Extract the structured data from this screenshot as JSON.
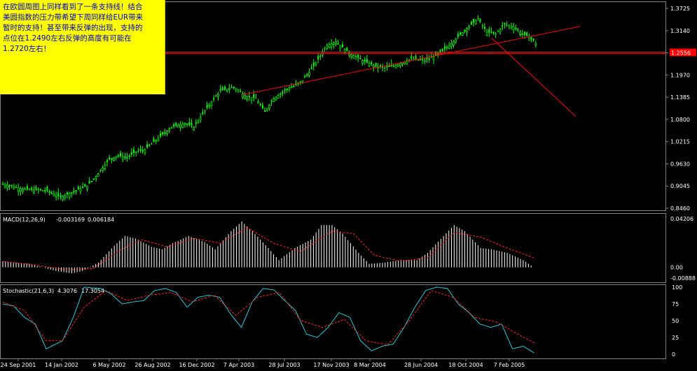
{
  "note": {
    "lines": [
      "在欧圆周图上同样看到了一条支持线！结合",
      "美圆指数的压力带希望下周同样给EUR带来",
      "暂时的支持！甚至带来反弹的出现，支持的",
      "点位在1.2490左右反弹的高度有可能在",
      "1.2720左右！"
    ]
  },
  "colors": {
    "background": "#000000",
    "candle_up": "#00ff00",
    "candle_down": "#00ff00",
    "grid_border": "#808080",
    "trend_line": "#ff0000",
    "macd_hist": "#ffffff",
    "macd_signal": "#ff2020",
    "stoch_main": "#20c8d8",
    "stoch_signal": "#ff2020",
    "price_label_bg": "#ff0000",
    "note_bg": "#ffff00",
    "note_text": "#0000c8"
  },
  "chart_data": [
    {
      "type": "candlestick",
      "title": "",
      "price_axis_ticks": [
        "1.3725",
        "1.3140",
        "1.2555",
        "1.1970",
        "1.1385",
        "1.0800",
        "1.0215",
        "0.9630",
        "0.9045",
        "0.8460"
      ],
      "ylim": [
        0.846,
        1.3725
      ],
      "current_price_label": "1.2556",
      "date_ticks": [
        "24 Sep 2001",
        "14 Jan 2002",
        "6 May 2002",
        "26 Aug 2002",
        "16 Dec 2002",
        "7 Apr 2003",
        "28 Jul 2003",
        "17 Nov 2003",
        "8 Mar 2004",
        "28 Jun 2004",
        "18 Oct 2004",
        "7 Feb 2005"
      ],
      "close_path": [
        [
          0,
          0.91
        ],
        [
          10,
          0.895
        ],
        [
          20,
          0.893
        ],
        [
          26,
          0.875
        ],
        [
          30,
          0.885
        ],
        [
          38,
          0.905
        ],
        [
          42,
          0.93
        ],
        [
          48,
          0.975
        ],
        [
          52,
          0.985
        ],
        [
          56,
          0.98
        ],
        [
          60,
          0.995
        ],
        [
          64,
          1.0
        ],
        [
          70,
          1.03
        ],
        [
          76,
          1.06
        ],
        [
          82,
          1.07
        ],
        [
          86,
          1.06
        ],
        [
          92,
          1.11
        ],
        [
          98,
          1.155
        ],
        [
          104,
          1.165
        ],
        [
          110,
          1.14
        ],
        [
          114,
          1.135
        ],
        [
          118,
          1.1
        ],
        [
          122,
          1.135
        ],
        [
          128,
          1.16
        ],
        [
          134,
          1.175
        ],
        [
          140,
          1.22
        ],
        [
          146,
          1.275
        ],
        [
          150,
          1.285
        ],
        [
          156,
          1.255
        ],
        [
          162,
          1.235
        ],
        [
          168,
          1.22
        ],
        [
          172,
          1.215
        ],
        [
          178,
          1.225
        ],
        [
          184,
          1.24
        ],
        [
          190,
          1.235
        ],
        [
          196,
          1.25
        ],
        [
          202,
          1.28
        ],
        [
          208,
          1.315
        ],
        [
          212,
          1.335
        ],
        [
          214,
          1.345
        ],
        [
          218,
          1.31
        ],
        [
          222,
          1.305
        ],
        [
          226,
          1.33
        ],
        [
          230,
          1.325
        ],
        [
          234,
          1.305
        ],
        [
          238,
          1.295
        ],
        [
          240,
          1.28
        ]
      ],
      "trend_lines": [
        {
          "from": [
            108,
            1.145
          ],
          "to": [
            260,
            1.325
          ]
        },
        {
          "from": [
            220,
            1.295
          ],
          "to": [
            258,
            1.088
          ]
        }
      ],
      "horizontal_lines": [
        1.2575,
        1.2535
      ]
    },
    {
      "type": "line",
      "title": "MACD(12,26,9)",
      "values_label": [
        "-0.003169",
        "0.006184"
      ],
      "ticks": [
        "0.04206",
        "0.00",
        "-0.00888"
      ],
      "ylim": [
        -0.00888,
        0.04206
      ],
      "series": [
        {
          "kind": "histogram",
          "path": [
            [
              0,
              0.005
            ],
            [
              10,
              0.003
            ],
            [
              20,
              -0.003
            ],
            [
              26,
              -0.005
            ],
            [
              30,
              -0.003
            ],
            [
              36,
              0.004
            ],
            [
              42,
              0.018
            ],
            [
              46,
              0.026
            ],
            [
              50,
              0.024
            ],
            [
              56,
              0.017
            ],
            [
              60,
              0.015
            ],
            [
              64,
              0.02
            ],
            [
              70,
              0.026
            ],
            [
              76,
              0.021
            ],
            [
              80,
              0.015
            ],
            [
              86,
              0.03
            ],
            [
              90,
              0.038
            ],
            [
              94,
              0.03
            ],
            [
              100,
              0.016
            ],
            [
              104,
              0.006
            ],
            [
              110,
              0.016
            ],
            [
              116,
              0.023
            ],
            [
              120,
              0.035
            ],
            [
              124,
              0.035
            ],
            [
              128,
              0.028
            ],
            [
              134,
              0.012
            ],
            [
              138,
              0.003
            ],
            [
              144,
              0.004
            ],
            [
              150,
              0.006
            ],
            [
              156,
              0.006
            ],
            [
              160,
              0.012
            ],
            [
              166,
              0.026
            ],
            [
              170,
              0.035
            ],
            [
              174,
              0.03
            ],
            [
              180,
              0.016
            ],
            [
              184,
              0.015
            ],
            [
              190,
              0.012
            ],
            [
              196,
              0.006
            ],
            [
              200,
              0.0
            ]
          ]
        },
        {
          "kind": "signal",
          "path": [
            [
              0,
              0.005
            ],
            [
              12,
              0.002
            ],
            [
              24,
              -0.002
            ],
            [
              34,
              -0.001
            ],
            [
              44,
              0.014
            ],
            [
              52,
              0.023
            ],
            [
              62,
              0.017
            ],
            [
              72,
              0.024
            ],
            [
              82,
              0.02
            ],
            [
              92,
              0.033
            ],
            [
              102,
              0.02
            ],
            [
              112,
              0.013
            ],
            [
              124,
              0.03
            ],
            [
              132,
              0.028
            ],
            [
              140,
              0.01
            ],
            [
              150,
              0.005
            ],
            [
              160,
              0.008
            ],
            [
              170,
              0.029
            ],
            [
              180,
              0.025
            ],
            [
              190,
              0.016
            ],
            [
              200,
              0.008
            ]
          ]
        }
      ]
    },
    {
      "type": "line",
      "title": "Stochastic(21,6,3)",
      "values_label": [
        "4.3076",
        "17.3054"
      ],
      "ticks": [
        "100",
        "75",
        "50",
        "25",
        "0"
      ],
      "ylim": [
        0,
        100
      ],
      "series": [
        {
          "kind": "main",
          "path": [
            [
              0,
              75
            ],
            [
              4,
              72
            ],
            [
              8,
              55
            ],
            [
              12,
              45
            ],
            [
              16,
              8
            ],
            [
              18,
              12
            ],
            [
              22,
              20
            ],
            [
              26,
              55
            ],
            [
              30,
              100
            ],
            [
              36,
              98
            ],
            [
              40,
              90
            ],
            [
              44,
              75
            ],
            [
              48,
              78
            ],
            [
              52,
              80
            ],
            [
              56,
              95
            ],
            [
              60,
              98
            ],
            [
              64,
              92
            ],
            [
              68,
              70
            ],
            [
              72,
              85
            ],
            [
              76,
              88
            ],
            [
              80,
              85
            ],
            [
              84,
              60
            ],
            [
              88,
              40
            ],
            [
              92,
              78
            ],
            [
              96,
              98
            ],
            [
              100,
              96
            ],
            [
              104,
              80
            ],
            [
              108,
              65
            ],
            [
              112,
              30
            ],
            [
              116,
              25
            ],
            [
              120,
              40
            ],
            [
              124,
              62
            ],
            [
              128,
              55
            ],
            [
              132,
              20
            ],
            [
              136,
              5
            ],
            [
              140,
              12
            ],
            [
              144,
              15
            ],
            [
              148,
              40
            ],
            [
              152,
              70
            ],
            [
              156,
              95
            ],
            [
              160,
              100
            ],
            [
              164,
              98
            ],
            [
              168,
              75
            ],
            [
              172,
              62
            ],
            [
              176,
              45
            ],
            [
              180,
              40
            ],
            [
              184,
              45
            ],
            [
              188,
              8
            ],
            [
              192,
              12
            ],
            [
              196,
              2
            ]
          ]
        },
        {
          "kind": "signal",
          "path": [
            [
              0,
              78
            ],
            [
              8,
              65
            ],
            [
              16,
              20
            ],
            [
              22,
              20
            ],
            [
              30,
              70
            ],
            [
              38,
              95
            ],
            [
              46,
              80
            ],
            [
              54,
              88
            ],
            [
              62,
              92
            ],
            [
              70,
              78
            ],
            [
              78,
              88
            ],
            [
              86,
              58
            ],
            [
              94,
              85
            ],
            [
              102,
              92
            ],
            [
              110,
              50
            ],
            [
              118,
              40
            ],
            [
              126,
              52
            ],
            [
              134,
              20
            ],
            [
              142,
              14
            ],
            [
              150,
              50
            ],
            [
              158,
              95
            ],
            [
              166,
              85
            ],
            [
              174,
              55
            ],
            [
              182,
              48
            ],
            [
              190,
              30
            ],
            [
              196,
              17
            ]
          ]
        }
      ]
    }
  ]
}
